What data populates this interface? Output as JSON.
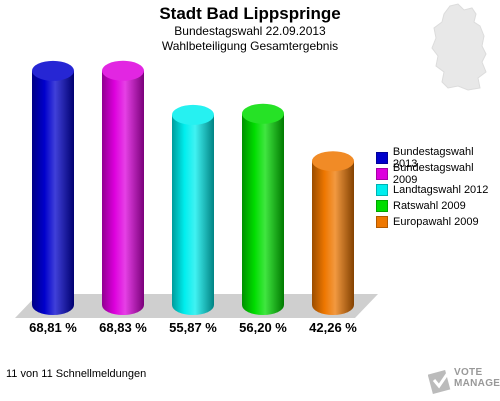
{
  "header": {
    "title": "Stadt Bad Lippspringe",
    "subtitle1": "Bundestagswahl 22.09.2013",
    "subtitle2": "Wahlbeteiligung Gesamtergebnis"
  },
  "chart_data": {
    "type": "bar",
    "title": "Stadt Bad Lippspringe",
    "subtitle": "Bundestagswahl 22.09.2013 — Wahlbeteiligung Gesamtergebnis",
    "categories": [
      "Bundestagswahl 2013",
      "Bundestagswahl 2009",
      "Landtagswahl 2012",
      "Ratswahl 2009",
      "Europawahl 2009"
    ],
    "values": [
      68.81,
      68.83,
      55.87,
      56.2,
      42.26
    ],
    "value_labels": [
      "68,81 %",
      "68,83 %",
      "55,87 %",
      "56,20 %",
      "42,26 %"
    ],
    "colors": [
      "#0000cc",
      "#dd00dd",
      "#00eeee",
      "#00dd00",
      "#ee7700"
    ],
    "unit": "%",
    "ylim": [
      0,
      72
    ],
    "legend_position": "right",
    "grid": false
  },
  "legend": {
    "items": [
      {
        "label": "Bundestagswahl 2013",
        "color": "#0000cc"
      },
      {
        "label": "Bundestagswahl 2009",
        "color": "#dd00dd"
      },
      {
        "label": "Landtagswahl 2012",
        "color": "#00eeee"
      },
      {
        "label": "Ratswahl 2009",
        "color": "#00dd00"
      },
      {
        "label": "Europawahl 2009",
        "color": "#ee7700"
      }
    ]
  },
  "footer": {
    "text": "11 von 11 Schnellmeldungen"
  },
  "logo": {
    "line1": "VOTE",
    "line2": "MANAGER",
    "icon": "vote-manager-logo-icon"
  },
  "map": {
    "icon": "germany-map-icon"
  }
}
